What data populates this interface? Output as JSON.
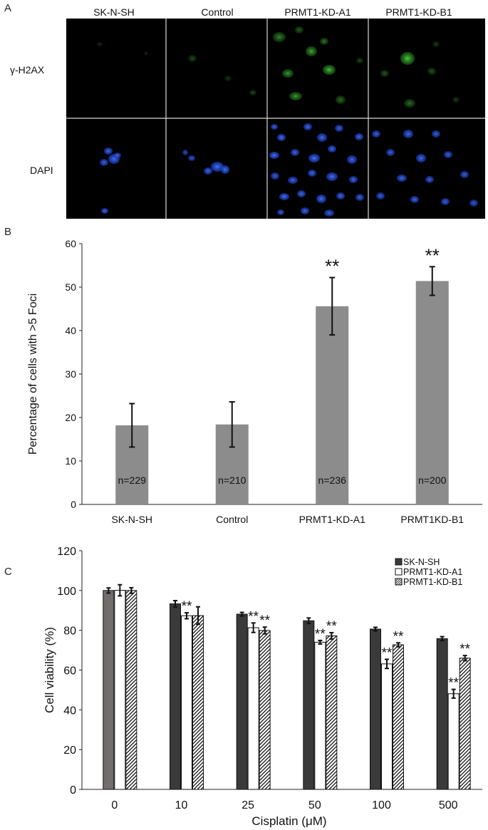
{
  "panel_a": {
    "letter": "A",
    "columns": [
      "SK-N-SH",
      "Control",
      "PRMT1-KD-A1",
      "PRMT1-KD-B1"
    ],
    "rows": [
      "γ-H2AX",
      "DAPI"
    ],
    "row_colors": {
      "γ-H2AX": "#3fc23a",
      "DAPI": "#2f56ff"
    }
  },
  "chart_data": [
    {
      "panel": "B",
      "type": "bar",
      "ylabel": "Percentage of cells with >5 Foci",
      "xlabel": "",
      "ylim": [
        0,
        60
      ],
      "yticks": [
        0,
        10,
        20,
        30,
        40,
        50,
        60
      ],
      "categories": [
        "SK-N-SH",
        "Control",
        "PRMT1-KD-A1",
        "PRMT1KD-B1"
      ],
      "values": [
        18.2,
        18.4,
        45.6,
        51.4
      ],
      "errors": [
        5.0,
        5.2,
        6.6,
        3.3
      ],
      "n_labels": [
        "n=229",
        "n=210",
        "n=236",
        "n=200"
      ],
      "significance": [
        "",
        "",
        "**",
        "**"
      ],
      "bar_color": "#8c8c8c",
      "grid": false
    },
    {
      "panel": "C",
      "type": "bar",
      "ylabel": "Cell viability (%)",
      "xlabel": "Cisplatin (μM)",
      "ylim": [
        0,
        120
      ],
      "yticks": [
        0,
        20,
        40,
        60,
        80,
        100,
        120
      ],
      "categories": [
        "0",
        "10",
        "25",
        "50",
        "100",
        "500"
      ],
      "series": [
        {
          "name": "SK-N-SH",
          "values": [
            100.0,
            93.3,
            88.1,
            84.8,
            80.6,
            75.8
          ],
          "errors": [
            1.3,
            1.6,
            0.9,
            1.4,
            0.9,
            1.0
          ],
          "fill": "#3a3a3a"
        },
        {
          "name": "PRMT1-KD-A1",
          "values": [
            100.1,
            87.3,
            81.3,
            74.0,
            63.1,
            48.1
          ],
          "errors": [
            2.8,
            1.5,
            2.4,
            0.9,
            2.3,
            2.2
          ],
          "fill": "#ffffff"
        },
        {
          "name": "PRMT1-KD-B1",
          "values": [
            100.0,
            87.4,
            79.9,
            77.2,
            72.7,
            66.0
          ],
          "errors": [
            1.4,
            4.4,
            1.7,
            1.6,
            1.0,
            1.3
          ],
          "fill": "hatch"
        }
      ],
      "first_group_color": "#736e6e",
      "significance": {
        "PRMT1-KD-A1": [
          "",
          "**",
          "**",
          "**",
          "**",
          "**"
        ],
        "PRMT1-KD-B1": [
          "",
          "",
          "**",
          "**",
          "**",
          "**"
        ]
      },
      "legend_position": "top-right",
      "grid": false
    }
  ]
}
